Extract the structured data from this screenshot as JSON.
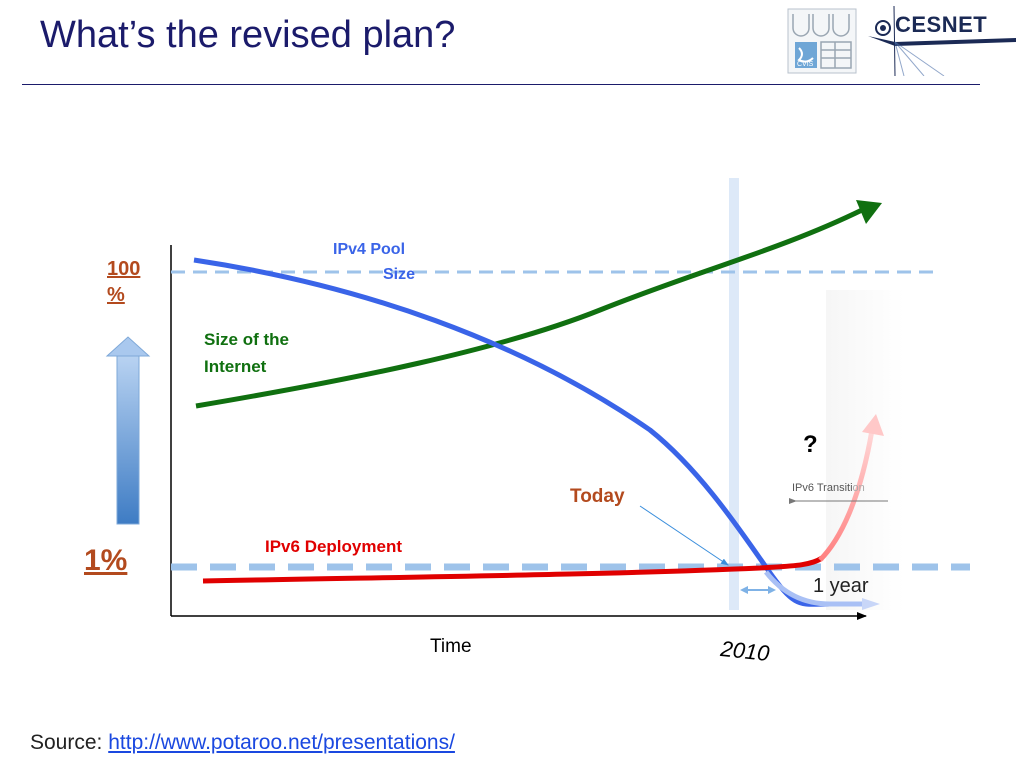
{
  "slide": {
    "title": "What’s the revised plan?",
    "logos": {
      "left": "CVIS",
      "right": "CESNET"
    }
  },
  "diagram": {
    "y_labels": {
      "top": "100 %",
      "bottom": "1%"
    },
    "curve_labels": {
      "ipv4_line1": "IPv4 Pool",
      "ipv4_line2": "Size",
      "internet_line1": "Size of the",
      "internet_line2": "Internet",
      "ipv6_deployment": "IPv6 Deployment"
    },
    "annotations": {
      "today": "Today",
      "question": "?",
      "transition_a": "IPv6 Transiti",
      "transition_b": "on",
      "one_year": "1 year"
    },
    "axes": {
      "x_label": "Time",
      "year_marker": "2010"
    },
    "colors": {
      "ipv4": "#3a64e8",
      "internet": "#107010",
      "ipv6": "#e00000",
      "dashed": "#9ec3ea",
      "label_accent": "#b34a1e"
    }
  },
  "footer": {
    "source_prefix": "Source:",
    "source_link": "http://www.potaroo.net/presentations/"
  }
}
